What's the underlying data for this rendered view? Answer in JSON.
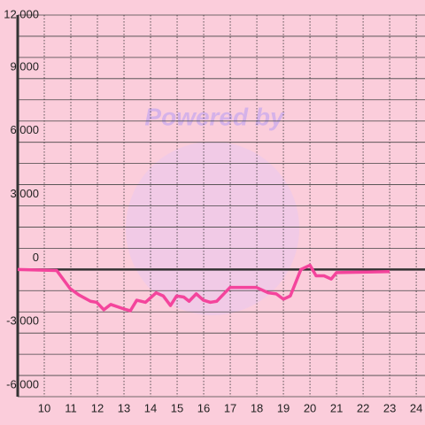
{
  "chart_data": {
    "type": "line",
    "watermark": "Powered by",
    "x": [
      9.0,
      10.47,
      10.97,
      11.3,
      11.74,
      11.97,
      12.24,
      12.5,
      12.97,
      13.24,
      13.48,
      13.81,
      14.21,
      14.48,
      14.75,
      14.98,
      15.25,
      15.45,
      15.72,
      15.99,
      16.25,
      16.49,
      16.99,
      17.99,
      18.43,
      18.73,
      19.0,
      19.26,
      19.66,
      20.0,
      20.23,
      20.53,
      20.8,
      21.0,
      23.0
    ],
    "series": [
      {
        "color": "#f4449c",
        "values": [
          0,
          -50,
          -900,
          -1200,
          -1500,
          -1550,
          -1900,
          -1650,
          -1850,
          -1950,
          -1450,
          -1550,
          -1100,
          -1250,
          -1700,
          -1250,
          -1300,
          -1500,
          -1150,
          -1450,
          -1550,
          -1500,
          -850,
          -850,
          -1100,
          -1150,
          -1400,
          -1250,
          0,
          200,
          -300,
          -300,
          -450,
          -150,
          -100
        ]
      }
    ],
    "xlim": [
      9,
      24.33
    ],
    "xticks": [
      10,
      11,
      12,
      13,
      14,
      15,
      16,
      17,
      18,
      19,
      20,
      21,
      22,
      23,
      24
    ],
    "ylim": [
      -6000,
      12000
    ],
    "yticks": [
      {
        "value": -6000,
        "label": "-6,000"
      },
      {
        "value": -3000,
        "label": "-3,000"
      },
      0,
      {
        "value": 3000,
        "label": "3,000"
      },
      {
        "value": 6000,
        "label": "6,000"
      },
      {
        "value": 9000,
        "label": "9,000"
      },
      {
        "value": 12000,
        "label": "12,000"
      }
    ],
    "y_minor_ticks": [
      -5000,
      -4000,
      -2000,
      -1000,
      1000,
      2000,
      4000,
      5000,
      7000,
      8000,
      10000,
      11000
    ],
    "grid": true
  }
}
